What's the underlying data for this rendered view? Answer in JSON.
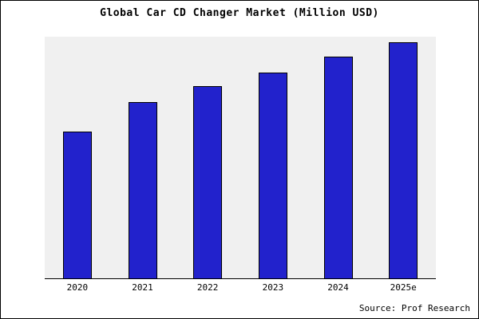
{
  "title": "Global Car CD Changer Market (Million USD)",
  "source": "Source: Prof Research",
  "chart_data": {
    "type": "bar",
    "title": "Global Car CD Changer Market (Million USD)",
    "categories": [
      "2020",
      "2021",
      "2022",
      "2023",
      "2024",
      "2025e"
    ],
    "values": [
      62,
      74.5,
      81,
      87,
      93.5,
      99.5
    ],
    "ylim": [
      0,
      102
    ],
    "xlabel": "",
    "ylabel": "",
    "grid": false,
    "legend": "none",
    "y_axis_labels_visible": false,
    "bar_color": "#2222cc",
    "bar_border_color": "#000000",
    "plot_background": "#f0f0f0",
    "annotation": "Source: Prof Research"
  }
}
